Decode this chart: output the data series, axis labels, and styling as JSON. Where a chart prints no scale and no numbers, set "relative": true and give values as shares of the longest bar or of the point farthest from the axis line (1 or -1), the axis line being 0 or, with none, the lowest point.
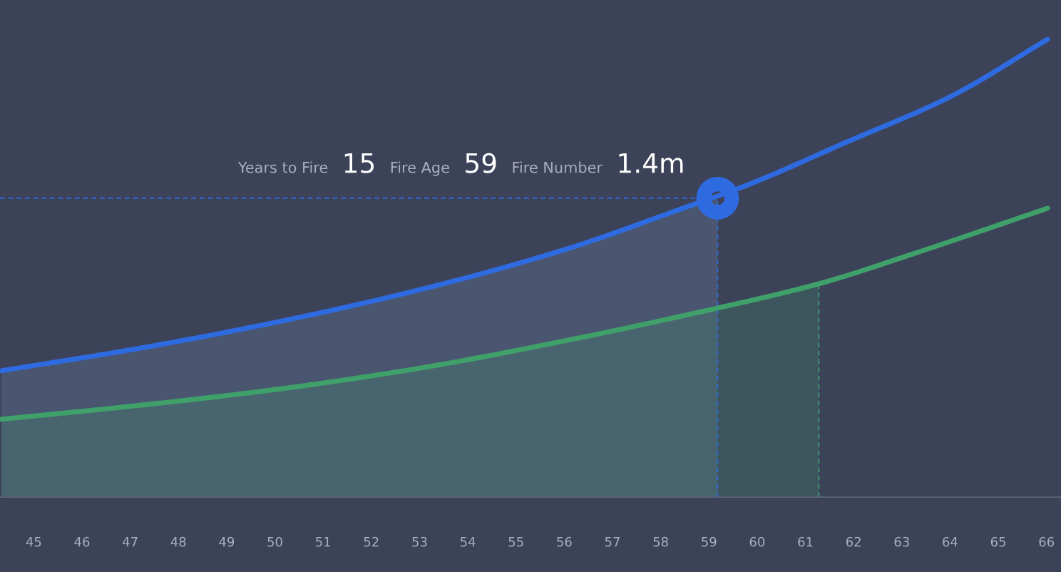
{
  "chart_data": {
    "type": "line",
    "relative": true,
    "xlim": [
      44.3,
      66.3
    ],
    "xticks": [
      45,
      46,
      47,
      48,
      49,
      50,
      51,
      52,
      53,
      54,
      55,
      56,
      57,
      58,
      59,
      60,
      61,
      62,
      63,
      64,
      65,
      66
    ],
    "series": [
      {
        "type": "area",
        "color": "#4a5570",
        "x": [
          44.33,
          47.24,
          50.16,
          53.08,
          55.99,
          59.18
        ],
        "values": [
          0.276,
          0.326,
          0.385,
          0.455,
          0.54,
          0.653
        ]
      },
      {
        "type": "area",
        "color": "#3fa06a",
        "x": [
          44.33,
          47.24,
          50.16,
          53.08,
          55.99,
          59.18,
          61.28
        ],
        "values": [
          0.17,
          0.201,
          0.237,
          0.283,
          0.341,
          0.413,
          0.466
        ]
      },
      {
        "color": "#2f6be0",
        "x": [
          44.33,
          47.24,
          50.16,
          53.08,
          55.99,
          58.54,
          59.85,
          61.82,
          64.01,
          66.02
        ],
        "values": [
          0.276,
          0.326,
          0.385,
          0.455,
          0.54,
          0.634,
          0.684,
          0.774,
          0.875,
          1.0
        ]
      },
      {
        "color": "#3fa06a",
        "x": [
          44.33,
          47.24,
          50.16,
          53.08,
          55.99,
          59.18,
          61.28,
          63.28,
          66.02
        ],
        "values": [
          0.17,
          0.201,
          0.237,
          0.283,
          0.341,
          0.413,
          0.466,
          0.533,
          0.631
        ]
      },
      {
        "type": "scatter",
        "color": "#2f6be0",
        "marker": "circle",
        "x": [
          59.18
        ],
        "values": [
          0.653
        ]
      }
    ],
    "ref_lines": [
      {
        "axis": "x",
        "value": 59.18,
        "color": "#2f6be0",
        "line_style": "dashed"
      },
      {
        "axis": "x",
        "value": 61.28,
        "color": "#3fa06a",
        "line_style": "dashed"
      },
      {
        "axis": "y",
        "value": 0.653,
        "color": "#2f6be0",
        "line_style": "dashed"
      }
    ],
    "annotations": [
      "Years to Fire",
      "15",
      "Fire Age",
      "59",
      "Fire Number",
      "1.4m"
    ],
    "grid": false,
    "legend": false
  }
}
